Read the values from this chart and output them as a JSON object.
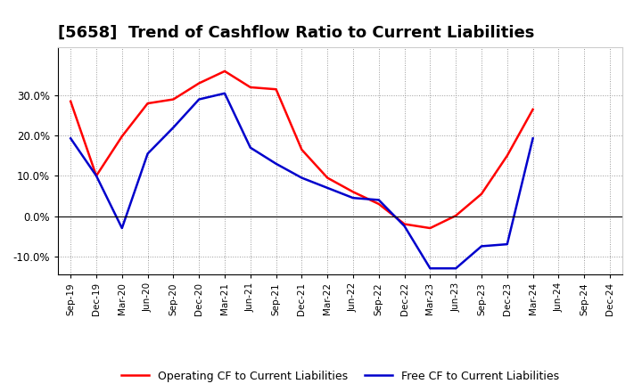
{
  "title": "[5658]  Trend of Cashflow Ratio to Current Liabilities",
  "x_labels": [
    "Sep-19",
    "Dec-19",
    "Mar-20",
    "Jun-20",
    "Sep-20",
    "Dec-20",
    "Mar-21",
    "Jun-21",
    "Sep-21",
    "Dec-21",
    "Mar-22",
    "Jun-22",
    "Sep-22",
    "Dec-22",
    "Mar-23",
    "Jun-23",
    "Sep-23",
    "Dec-23",
    "Mar-24",
    "Jun-24",
    "Sep-24",
    "Dec-24"
  ],
  "operating_cf": [
    0.285,
    0.1,
    0.198,
    0.28,
    0.29,
    0.33,
    0.36,
    0.32,
    0.315,
    0.165,
    0.095,
    0.06,
    0.03,
    -0.02,
    -0.03,
    0.001,
    0.055,
    0.15,
    0.265,
    null,
    null,
    null
  ],
  "free_cf": [
    0.193,
    0.1,
    -0.03,
    0.155,
    0.22,
    0.29,
    0.305,
    0.17,
    0.13,
    0.095,
    0.07,
    0.045,
    0.04,
    -0.025,
    -0.13,
    -0.13,
    -0.075,
    -0.07,
    0.193,
    null,
    null,
    null
  ],
  "operating_cf_color": "#FF0000",
  "free_cf_color": "#0000CC",
  "background_color": "#FFFFFF",
  "plot_bg_color": "#FFFFFF",
  "grid_color": "#999999",
  "ylim": [
    -0.145,
    0.42
  ],
  "yticks": [
    -0.1,
    0.0,
    0.1,
    0.2,
    0.3
  ],
  "title_fontsize": 13,
  "legend_labels": [
    "Operating CF to Current Liabilities",
    "Free CF to Current Liabilities"
  ],
  "linewidth": 1.8
}
